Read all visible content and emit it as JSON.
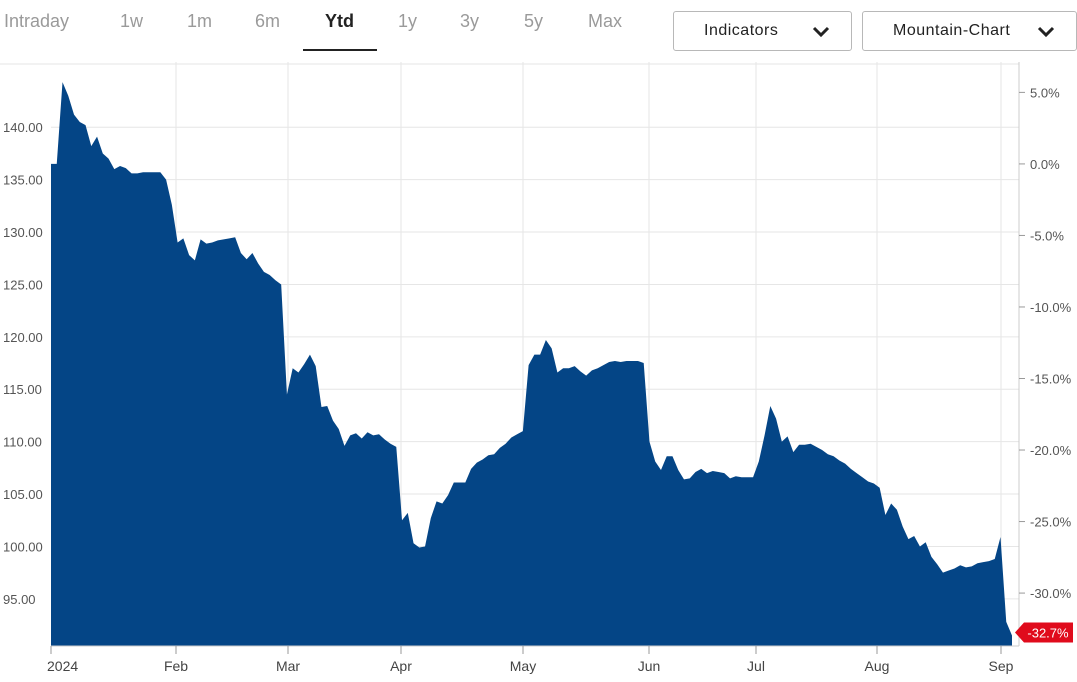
{
  "tabs": [
    {
      "label": "Intraday",
      "active": false
    },
    {
      "label": "1w",
      "active": false
    },
    {
      "label": "1m",
      "active": false
    },
    {
      "label": "6m",
      "active": false
    },
    {
      "label": "Ytd",
      "active": true
    },
    {
      "label": "1y",
      "active": false
    },
    {
      "label": "3y",
      "active": false
    },
    {
      "label": "5y",
      "active": false
    },
    {
      "label": "Max",
      "active": false
    }
  ],
  "controls": {
    "indicators_label": "Indicators",
    "chart_type_label": "Mountain-Chart"
  },
  "colors": {
    "area_fill": "#044586",
    "badge": "#e00b1c",
    "grid": "#e6e6e6",
    "active_tab": "#222222",
    "inactive_tab": "#9a9a9a"
  },
  "chart_data": {
    "type": "area",
    "grid": true,
    "x_ticks": [
      "2024",
      "Feb",
      "Mar",
      "Apr",
      "May",
      "Jun",
      "Jul",
      "Aug",
      "Sep"
    ],
    "y_left_ticks": [
      "140.00",
      "135.00",
      "130.00",
      "125.00",
      "120.00",
      "115.00",
      "110.00",
      "105.00",
      "100.00",
      "95.00"
    ],
    "y_right_ticks": [
      "5.0%",
      "0.0%",
      "-5.0%",
      "-10.0%",
      "-15.0%",
      "-20.0%",
      "-25.0%",
      "-30.0%"
    ],
    "ylim": [
      90.5,
      147.5
    ],
    "current_change_label": "-32.7%",
    "series": [
      {
        "values": [
          136.5,
          136.5,
          144.3,
          143.0,
          141.2,
          140.5,
          140.2,
          138.2,
          139.1,
          137.5,
          137.0,
          136.0,
          136.3,
          136.1,
          135.6,
          135.6,
          135.7,
          135.7,
          135.7,
          135.7,
          135.0,
          132.6,
          129.0,
          129.4,
          127.8,
          127.3,
          129.3,
          128.9,
          129.0,
          129.2,
          129.3,
          129.4,
          129.5,
          128.0,
          127.4,
          128.0,
          127.0,
          126.2,
          125.9,
          125.4,
          125.0,
          114.5,
          117.0,
          116.6,
          117.4,
          118.3,
          117.2,
          113.3,
          113.4,
          112.0,
          111.2,
          109.6,
          110.6,
          110.8,
          110.3,
          110.9,
          110.6,
          110.7,
          110.2,
          109.8,
          109.5,
          102.5,
          103.2,
          100.3,
          99.9,
          100.0,
          102.7,
          104.3,
          104.1,
          104.9,
          106.1,
          106.1,
          106.1,
          107.4,
          108.0,
          108.3,
          108.7,
          108.8,
          109.4,
          109.8,
          110.4,
          110.7,
          111.0,
          117.3,
          118.3,
          118.3,
          119.7,
          118.9,
          116.6,
          117.0,
          117.0,
          117.2,
          116.7,
          116.3,
          116.8,
          117.0,
          117.3,
          117.6,
          117.7,
          117.6,
          117.7,
          117.7,
          117.7,
          117.5,
          110.0,
          108.1,
          107.3,
          108.6,
          108.6,
          107.3,
          106.4,
          106.5,
          107.1,
          107.4,
          107.0,
          107.2,
          107.1,
          107.0,
          106.5,
          106.7,
          106.6,
          106.6,
          106.6,
          108.1,
          110.6,
          113.4,
          112.2,
          110.0,
          110.5,
          109.0,
          109.7,
          109.7,
          109.8,
          109.5,
          109.2,
          108.8,
          108.6,
          108.2,
          107.9,
          107.4,
          107.0,
          106.6,
          106.2,
          106.0,
          105.6,
          103.0,
          104.1,
          103.5,
          101.9,
          100.7,
          101.0,
          100.0,
          100.4,
          99.0,
          98.3,
          97.5,
          97.7,
          97.9,
          98.2,
          98.0,
          98.1,
          98.4,
          98.5,
          98.6,
          98.8,
          100.9,
          92.8,
          91.5
        ]
      }
    ]
  }
}
